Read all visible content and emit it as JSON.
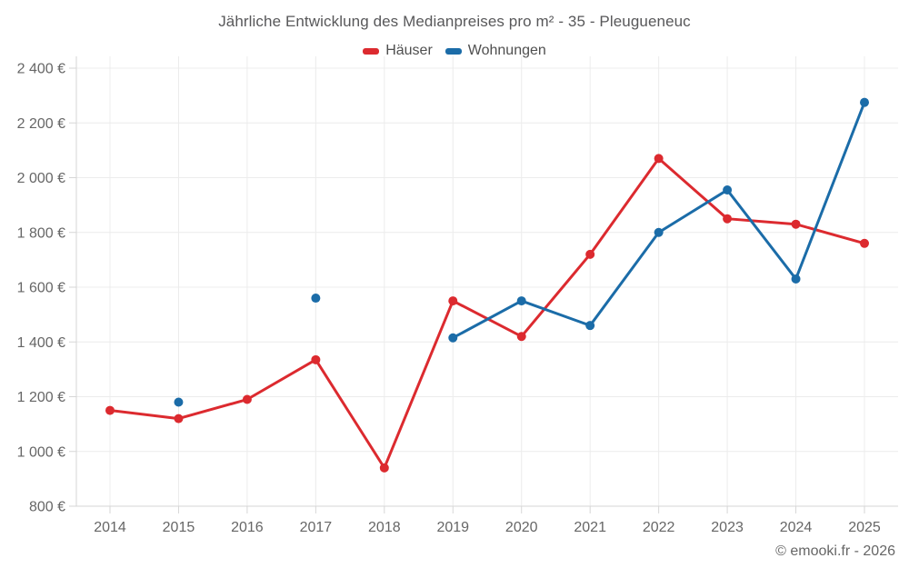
{
  "title": "Jährliche Entwicklung des Medianpreises pro m² - 35 - Pleugueneuc",
  "legend": {
    "items": [
      {
        "label": "Häuser",
        "color": "#dc2a2f"
      },
      {
        "label": "Wohnungen",
        "color": "#1b6ca8"
      }
    ]
  },
  "footer": {
    "credit": "© emooki.fr - 2026"
  },
  "colors": {
    "grid": "#ececec",
    "axis": "#d6d6d6",
    "tick_label": "#666666",
    "title": "#58585a",
    "background": "#ffffff"
  },
  "chart_data": {
    "type": "line",
    "title": "Jährliche Entwicklung des Medianpreises pro m² - 35 - Pleugueneuc",
    "x": [
      2014,
      2015,
      2016,
      2017,
      2018,
      2019,
      2020,
      2021,
      2022,
      2023,
      2024,
      2025
    ],
    "series": [
      {
        "name": "Häuser",
        "slug": "hauser",
        "color": "#dc2a2f",
        "values": [
          1150,
          1120,
          1190,
          1335,
          940,
          1550,
          1420,
          1720,
          2070,
          1850,
          1830,
          1760
        ]
      },
      {
        "name": "Wohnungen",
        "slug": "wohnungen",
        "color": "#1b6ca8",
        "values": [
          null,
          1180,
          null,
          1560,
          null,
          1415,
          1550,
          1460,
          1800,
          1955,
          1630,
          2275
        ]
      }
    ],
    "xlabel": "",
    "ylabel": "",
    "y_unit": "€",
    "ylim": [
      800,
      2400
    ],
    "ytick_step": 200,
    "grid": true,
    "legend_position": "top",
    "marker": "circle",
    "marker_radius": 5,
    "line_width": 3
  }
}
